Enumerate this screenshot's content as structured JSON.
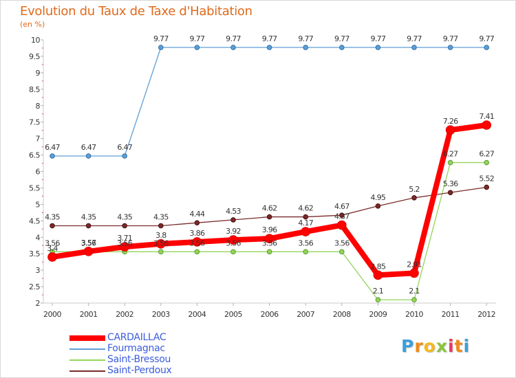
{
  "chart_data": {
    "type": "line",
    "title": "Evolution du Taux de Taxe d'Habitation",
    "ylabel": "(en %)",
    "xlabel": "",
    "categories": [
      "2000",
      "2001",
      "2002",
      "2003",
      "2004",
      "2005",
      "2006",
      "2007",
      "2008",
      "2009",
      "2010",
      "2011",
      "2012"
    ],
    "ylim": [
      2,
      10
    ],
    "yticks": [
      "2",
      "2.5",
      "3",
      "3.5",
      "4",
      "4.5",
      "5",
      "5.5",
      "6",
      "6.5",
      "7",
      "7.5",
      "8",
      "8.5",
      "9",
      "9.5",
      "10"
    ],
    "grid": false,
    "legend_position": "bottom-left",
    "series": [
      {
        "name": "CARDAILLAC",
        "color": "#ff0000",
        "values": [
          3.4,
          3.57,
          3.71,
          3.8,
          3.86,
          3.92,
          3.96,
          4.17,
          4.37,
          2.85,
          2.91,
          7.26,
          7.41
        ],
        "labels": [
          "3.4",
          "3.57",
          "3.71",
          "3.8",
          "3.86",
          "3.92",
          "3.96",
          "4.17",
          "4.37",
          "2.85",
          "2.91",
          "7.26",
          "7.41"
        ]
      },
      {
        "name": "Fourmagnac",
        "color": "#5f9ed6",
        "values": [
          6.47,
          6.47,
          6.47,
          9.77,
          9.77,
          9.77,
          9.77,
          9.77,
          9.77,
          9.77,
          9.77,
          9.77,
          9.77
        ],
        "labels": [
          "6.47",
          "6.47",
          "6.47",
          "9.77",
          "9.77",
          "9.77",
          "9.77",
          "9.77",
          "9.77",
          "9.77",
          "9.77",
          "9.77",
          "9.77"
        ]
      },
      {
        "name": "Saint-Bressou",
        "color": "#93d45a",
        "values": [
          3.56,
          3.56,
          3.56,
          3.56,
          3.56,
          3.56,
          3.56,
          3.56,
          3.56,
          2.1,
          2.1,
          6.27,
          6.27
        ],
        "labels": [
          "3.56",
          "3.56",
          "3.56",
          "3.56",
          "3.56",
          "3.56",
          "3.56",
          "3.56",
          "3.56",
          "2.1",
          "2.1",
          "6.27",
          "6.27"
        ]
      },
      {
        "name": "Saint-Perdoux",
        "color": "#7a2a2a",
        "values": [
          4.35,
          4.35,
          4.35,
          4.35,
          4.44,
          4.53,
          4.62,
          4.62,
          4.67,
          4.95,
          5.2,
          5.36,
          5.52
        ],
        "labels": [
          "4.35",
          "4.35",
          "4.35",
          "4.35",
          "4.44",
          "4.53",
          "4.62",
          "4.62",
          "4.67",
          "4.95",
          "5.2",
          "5.36",
          "5.52"
        ]
      }
    ]
  },
  "branding": {
    "logo_letters": [
      "P",
      "r",
      "o",
      "x",
      "i",
      "t",
      "i"
    ],
    "logo_colors": [
      "#3aa0dc",
      "#f08a1c",
      "#f5b81f",
      "#8bc53f",
      "#e23b5a",
      "#f08a1c",
      "#3aa0dc"
    ]
  }
}
